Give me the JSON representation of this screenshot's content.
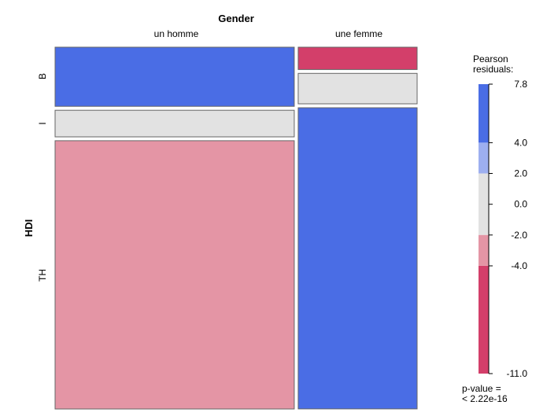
{
  "chart_data": {
    "type": "mosaic",
    "x_variable": "Gender",
    "y_variable": "HDI",
    "columns": [
      {
        "label": "un homme",
        "proportion": 0.668
      },
      {
        "label": "une femme",
        "proportion": 0.332
      }
    ],
    "rows": [
      "B",
      "I",
      "TH"
    ],
    "cells": [
      {
        "column": "un homme",
        "row": "B",
        "share": 0.167,
        "residual_band": "4.0 to 7.8",
        "color": "#4a6de5"
      },
      {
        "column": "un homme",
        "row": "I",
        "share": 0.075,
        "residual_band": "-2.0 to 2.0",
        "color": "#e2e2e2"
      },
      {
        "column": "un homme",
        "row": "TH",
        "share": 0.758,
        "residual_band": "-4.0 to -2.0",
        "color": "#e495a5"
      },
      {
        "column": "une femme",
        "row": "B",
        "share": 0.063,
        "residual_band": "-11.0 to -4.0",
        "color": "#d33f6a"
      },
      {
        "column": "une femme",
        "row": "I",
        "share": 0.086,
        "residual_band": "-2.0 to 2.0",
        "color": "#e2e2e2"
      },
      {
        "column": "une femme",
        "row": "TH",
        "share": 0.851,
        "residual_band": "4.0 to 7.8",
        "color": "#4a6de5"
      }
    ],
    "legend": {
      "title_lines": [
        "Pearson",
        "residuals:"
      ],
      "max": 7.8,
      "min": -11.0,
      "ticks": [
        "7.8",
        "4.0",
        "2.0",
        "0.0",
        "-2.0",
        "-4.0",
        "-11.0"
      ],
      "tick_values": [
        7.8,
        4.0,
        2.0,
        0.0,
        -2.0,
        -4.0,
        -11.0
      ],
      "bands": [
        {
          "from": 4.0,
          "to": 7.8,
          "color": "#4a6de5"
        },
        {
          "from": 2.0,
          "to": 4.0,
          "color": "#9daff0"
        },
        {
          "from": -2.0,
          "to": 2.0,
          "color": "#e2e2e2"
        },
        {
          "from": -4.0,
          "to": -2.0,
          "color": "#e495a5"
        },
        {
          "from": -11.0,
          "to": -4.0,
          "color": "#d33f6a"
        }
      ],
      "pvalue_lines": [
        "p-value =",
        "< 2.22e-16"
      ]
    }
  }
}
